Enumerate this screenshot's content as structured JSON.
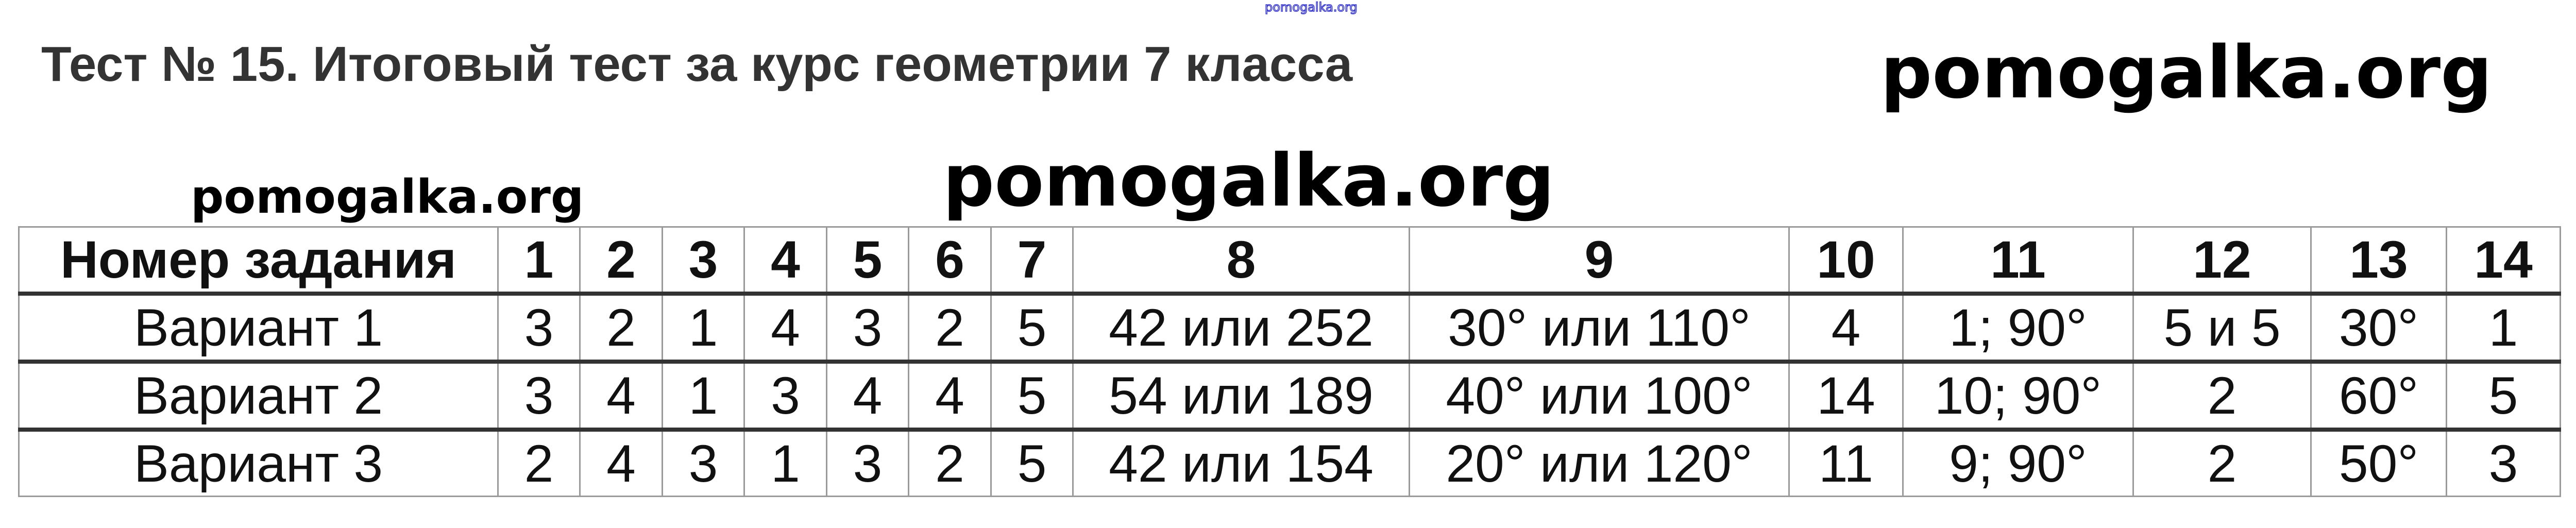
{
  "watermark_top": "pomogalka.org",
  "title": "Тест № 15. Итоговый тест за курс геометрии 7 класса",
  "watermarks": [
    "pomogalka.org",
    "pomogalka.org",
    "pomogalka.org"
  ],
  "table": {
    "header": [
      "Номер задания",
      "1",
      "2",
      "3",
      "4",
      "5",
      "6",
      "7",
      "8",
      "9",
      "10",
      "11",
      "12",
      "13",
      "14"
    ],
    "rows": [
      [
        "Вариант 1",
        "3",
        "2",
        "1",
        "4",
        "3",
        "2",
        "5",
        "42 или 252",
        "30° или 110°",
        "4",
        "1; 90°",
        "5 и 5",
        "30°",
        "1"
      ],
      [
        "Вариант 2",
        "3",
        "4",
        "1",
        "3",
        "4",
        "4",
        "5",
        "54 или 189",
        "40° или 100°",
        "14",
        "10; 90°",
        "2",
        "60°",
        "5"
      ],
      [
        "Вариант 3",
        "2",
        "4",
        "3",
        "1",
        "3",
        "2",
        "5",
        "42 или 154",
        "20° или 120°",
        "11",
        "9; 90°",
        "2",
        "50°",
        "3"
      ]
    ]
  }
}
